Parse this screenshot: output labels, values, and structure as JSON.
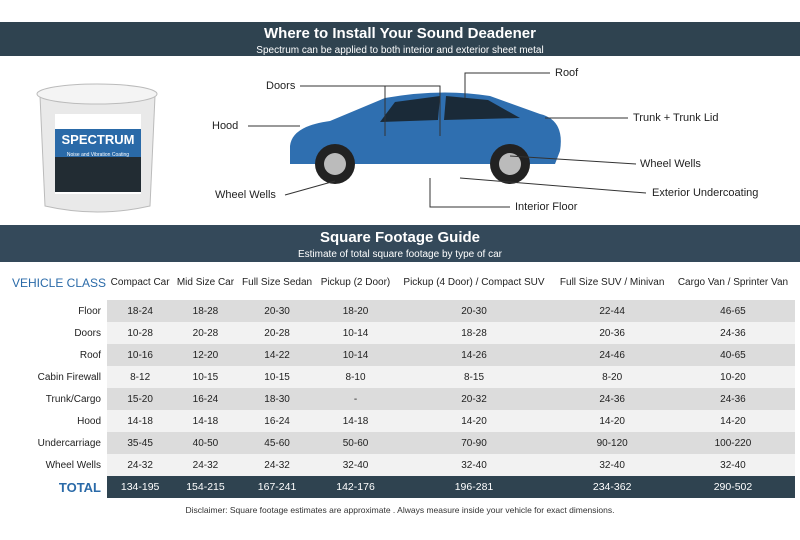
{
  "top_banner": {
    "title": "Where to Install Your Sound Deadener",
    "subtitle": "Spectrum can be applied to both interior and exterior sheet metal"
  },
  "product": {
    "brand": "SPECTRUM",
    "tagline": "Noise and Vibration Coating"
  },
  "callouts": [
    "Doors",
    "Hood",
    "Wheel Wells",
    "Roof",
    "Trunk + Trunk Lid",
    "Wheel Wells",
    "Exterior Undercoating",
    "Interior Floor"
  ],
  "guide_banner": {
    "title": "Square Footage Guide",
    "subtitle": "Estimate of total square footage by type of car"
  },
  "table": {
    "corner": "VEHICLE CLASS",
    "columns": [
      "Compact Car",
      "Mid Size Car",
      "Full Size Sedan",
      "Pickup (2 Door)",
      "Pickup (4 Door) / Compact SUV",
      "Full Size SUV / Minivan",
      "Cargo Van / Sprinter Van"
    ],
    "rows": [
      {
        "label": "Floor",
        "values": [
          "18-24",
          "18-28",
          "20-30",
          "18-20",
          "20-30",
          "22-44",
          "46-65"
        ]
      },
      {
        "label": "Doors",
        "values": [
          "10-28",
          "20-28",
          "20-28",
          "10-14",
          "18-28",
          "20-36",
          "24-36"
        ]
      },
      {
        "label": "Roof",
        "values": [
          "10-16",
          "12-20",
          "14-22",
          "10-14",
          "14-26",
          "24-46",
          "40-65"
        ]
      },
      {
        "label": "Cabin Firewall",
        "values": [
          "8-12",
          "10-15",
          "10-15",
          "8-10",
          "8-15",
          "8-20",
          "10-20"
        ]
      },
      {
        "label": "Trunk/Cargo",
        "values": [
          "15-20",
          "16-24",
          "18-30",
          "-",
          "20-32",
          "24-36",
          "24-36"
        ]
      },
      {
        "label": "Hood",
        "values": [
          "14-18",
          "14-18",
          "16-24",
          "14-18",
          "14-20",
          "14-20",
          "14-20"
        ]
      },
      {
        "label": "Undercarriage",
        "values": [
          "35-45",
          "40-50",
          "45-60",
          "50-60",
          "70-90",
          "90-120",
          "100-220"
        ]
      },
      {
        "label": "Wheel Wells",
        "values": [
          "24-32",
          "24-32",
          "24-32",
          "32-40",
          "32-40",
          "32-40",
          "32-40"
        ]
      }
    ],
    "total": {
      "label": "TOTAL",
      "values": [
        "134-195",
        "154-215",
        "167-241",
        "142-176",
        "196-281",
        "234-362",
        "290-502"
      ]
    }
  },
  "disclaimer": "Disclaimer:  Square footage estimates are approximate . Always measure inside your vehicle for exact dimensions.",
  "colors": {
    "banner": "#2f4350",
    "accent": "#2a6aa8",
    "car": "#2f6fb0"
  }
}
